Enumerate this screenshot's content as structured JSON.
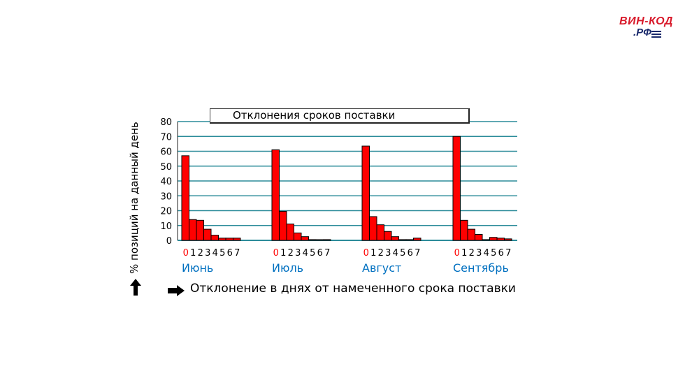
{
  "logo": {
    "line1": "ВИН-КОД",
    "line2": ".РФ"
  },
  "chart_data": {
    "type": "bar",
    "title": "Отклонения сроков поставки",
    "ylabel": "% позиций на данный день",
    "xlabel": "Отклонение в днях от намеченного срока поставки",
    "ylim": [
      0,
      80
    ],
    "yticks": [
      "0",
      "10",
      "20",
      "30",
      "40",
      "50",
      "60",
      "70",
      "80"
    ],
    "categories": [
      "0",
      "1",
      "2",
      "3",
      "4",
      "5",
      "6",
      "7"
    ],
    "grid": true,
    "groups": [
      {
        "name": "Июнь",
        "values": [
          57,
          14,
          13.5,
          7.5,
          3.5,
          1.5,
          1.5,
          1.5
        ]
      },
      {
        "name": "Июль",
        "values": [
          61,
          19.5,
          11,
          5,
          2.5,
          0.5,
          0,
          0.5
        ]
      },
      {
        "name": "Август",
        "values": [
          63.5,
          16,
          10.5,
          6,
          2.5,
          0.5,
          0.5,
          1.5
        ]
      },
      {
        "name": "Сентябрь",
        "values": [
          70,
          13.5,
          7.5,
          4,
          0.5,
          2,
          1.5,
          1
        ]
      }
    ],
    "colors": {
      "bar": "#ff0000",
      "highlight_tick": "#ff0000",
      "group_label": "#0070c0",
      "grid": "#2c8c9a"
    }
  }
}
